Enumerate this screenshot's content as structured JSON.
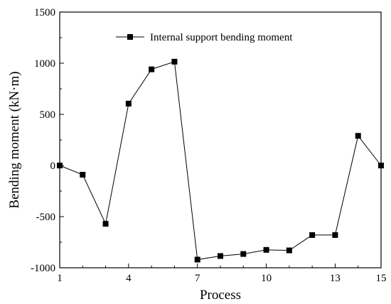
{
  "chart_data": {
    "type": "line",
    "xlabel": "Process",
    "ylabel": "Bending moment (kN·m)",
    "xlim": [
      1,
      15
    ],
    "ylim": [
      -1000,
      1500
    ],
    "xticks": [
      1,
      4,
      7,
      10,
      13,
      15
    ],
    "yticks": [
      -1000,
      -500,
      0,
      500,
      1000,
      1500
    ],
    "grid": false,
    "legend_position": "top-right",
    "series": [
      {
        "name": "Internal support bending moment",
        "color": "#000000",
        "marker": "square",
        "x": [
          1,
          2,
          3,
          4,
          5,
          6,
          7,
          8,
          9,
          10,
          11,
          12,
          13,
          14,
          15
        ],
        "y": [
          0,
          -90,
          -570,
          605,
          940,
          1015,
          -920,
          -885,
          -865,
          -825,
          -830,
          -680,
          -680,
          290,
          0
        ]
      }
    ]
  }
}
